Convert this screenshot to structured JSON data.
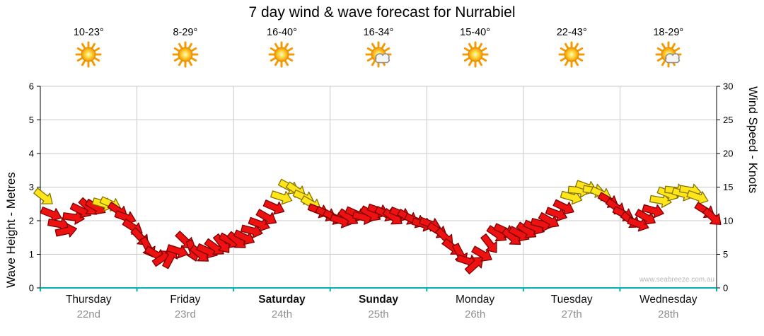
{
  "title": "7 day wind & wave forecast for Nurrabiel",
  "watermark": "www.seabreeze.com.au",
  "days": [
    {
      "name": "Thursday",
      "date": "22nd",
      "temp": "10-23°",
      "icon": "sunny",
      "weekend": false
    },
    {
      "name": "Friday",
      "date": "23rd",
      "temp": "8-29°",
      "icon": "sunny",
      "weekend": false
    },
    {
      "name": "Saturday",
      "date": "24th",
      "temp": "16-40°",
      "icon": "sunny",
      "weekend": true
    },
    {
      "name": "Sunday",
      "date": "25th",
      "temp": "16-34°",
      "icon": "partly-cloudy",
      "weekend": true
    },
    {
      "name": "Monday",
      "date": "26th",
      "temp": "15-40°",
      "icon": "sunny",
      "weekend": false
    },
    {
      "name": "Tuesday",
      "date": "27th",
      "temp": "22-43°",
      "icon": "sunny",
      "weekend": false
    },
    {
      "name": "Wednesday",
      "date": "28th",
      "temp": "18-29°",
      "icon": "partly-cloudy",
      "weekend": false
    }
  ],
  "chart_data": {
    "type": "scatter",
    "subtype": "wind-direction-arrows",
    "title": "7 day wind & wave forecast for Nurrabiel",
    "x_categories": [
      "Thursday 22nd",
      "Friday 23rd",
      "Saturday 24th",
      "Sunday 25th",
      "Monday 26th",
      "Tuesday 27th",
      "Wednesday 28th"
    ],
    "left_axis": {
      "label": "Wave Height - Metres",
      "range": [
        0,
        6
      ],
      "ticks": [
        0,
        1,
        2,
        3,
        4,
        5,
        6
      ]
    },
    "right_axis": {
      "label": "Wind Speed - Knots",
      "range": [
        0,
        30
      ],
      "ticks": [
        0,
        5,
        10,
        15,
        20,
        25,
        30
      ]
    },
    "grid": true,
    "colors": {
      "arrow_red": "#ee1111",
      "arrow_red_outline": "#7d0000",
      "arrow_yellow": "#ffe61a",
      "arrow_yellow_outline": "#857200",
      "baseline": "#00b2b2",
      "grid": "#c9c9c9",
      "axis": "#000000"
    },
    "series": [
      {
        "day": "Thursday 22nd",
        "knots": [
          13.5,
          11,
          9.5,
          8.5,
          10.5,
          11.5,
          12,
          12,
          12.5,
          12.5,
          11.5,
          10.5,
          9
        ],
        "dir_deg": [
          38,
          22,
          10,
          -12,
          8,
          26,
          42,
          30,
          16,
          24,
          34,
          20,
          32
        ],
        "strong": [
          1,
          0,
          0,
          0,
          0,
          0,
          0,
          0,
          1,
          1,
          0,
          0,
          0
        ]
      },
      {
        "day": "Friday 23rd",
        "knots": [
          7.5,
          6,
          5,
          4.5,
          4.5,
          5.5,
          7,
          5.5,
          5,
          5.5,
          6,
          6.5,
          7
        ],
        "dir_deg": [
          46,
          62,
          30,
          -34,
          -62,
          18,
          44,
          72,
          40,
          24,
          36,
          52,
          28
        ],
        "strong": [
          0,
          0,
          0,
          0,
          0,
          0,
          0,
          0,
          0,
          0,
          0,
          0,
          0
        ]
      },
      {
        "day": "Saturday 24th",
        "knots": [
          7,
          7.5,
          8.5,
          9.5,
          10.5,
          12,
          13.5,
          15,
          14.5,
          13.5,
          12.5,
          11.5,
          11
        ],
        "dir_deg": [
          40,
          26,
          14,
          20,
          30,
          24,
          18,
          28,
          34,
          24,
          30,
          22,
          26
        ],
        "strong": [
          0,
          0,
          0,
          0,
          0,
          0,
          1,
          1,
          1,
          1,
          1,
          0,
          0
        ]
      },
      {
        "day": "Sunday 25th",
        "knots": [
          10.5,
          10,
          10.5,
          11,
          10.5,
          11,
          11.5,
          11,
          10.5,
          11,
          10.5,
          10,
          9.5
        ],
        "dir_deg": [
          28,
          18,
          34,
          24,
          14,
          30,
          20,
          26,
          36,
          22,
          30,
          24,
          16
        ],
        "strong": [
          0,
          0,
          0,
          0,
          0,
          0,
          0,
          0,
          0,
          0,
          0,
          0,
          0
        ]
      },
      {
        "day": "Monday 26th",
        "knots": [
          9.5,
          8.5,
          7.5,
          6,
          5,
          4,
          3.5,
          5,
          6.5,
          8,
          8.5,
          7.5,
          8
        ],
        "dir_deg": [
          20,
          32,
          46,
          36,
          62,
          18,
          -42,
          30,
          52,
          34,
          24,
          40,
          28
        ],
        "strong": [
          0,
          0,
          0,
          0,
          0,
          0,
          0,
          0,
          0,
          0,
          0,
          0,
          0
        ]
      },
      {
        "day": "Tuesday 27th",
        "knots": [
          8.5,
          9,
          9.5,
          10,
          11,
          12,
          13.5,
          14.5,
          15,
          14.5,
          14,
          13,
          12
        ],
        "dir_deg": [
          34,
          24,
          14,
          30,
          20,
          26,
          16,
          6,
          20,
          10,
          24,
          30,
          36
        ],
        "strong": [
          0,
          0,
          0,
          0,
          0,
          0,
          1,
          1,
          1,
          1,
          1,
          0,
          0
        ]
      },
      {
        "day": "Wednesday 28th",
        "knots": [
          11,
          10,
          9.5,
          10.5,
          11.5,
          13,
          14,
          14.5,
          14,
          14.5,
          13.5,
          11.5,
          10.5
        ],
        "dir_deg": [
          26,
          36,
          20,
          30,
          16,
          10,
          22,
          6,
          16,
          10,
          20,
          32,
          42
        ],
        "strong": [
          0,
          0,
          0,
          0,
          0,
          1,
          1,
          1,
          1,
          1,
          1,
          0,
          0
        ]
      }
    ]
  }
}
